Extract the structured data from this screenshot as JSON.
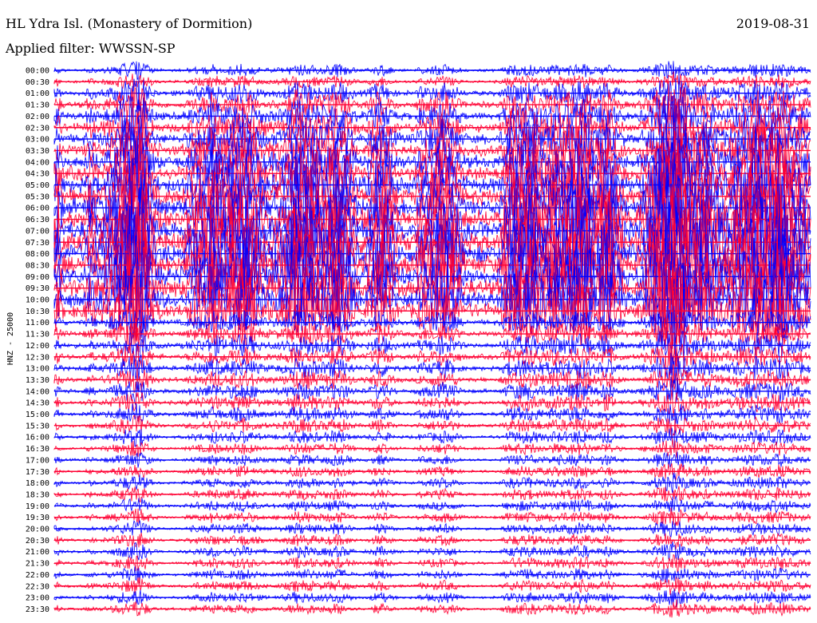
{
  "header": {
    "station": "HL Ydra Isl. (Monastery of Dormition)",
    "filter": "Applied filter: WWSSN-SP",
    "date": "2019-08-31"
  },
  "chart_data": {
    "type": "line",
    "title": "HL Ydra Isl. (Monastery of Dormition)",
    "subtitle": "Applied filter: WWSSN-SP",
    "date": "2019-08-31",
    "ylabel": "HNZ - 25000",
    "xlabel": "",
    "row_labels": [
      "00:00",
      "00:30",
      "01:00",
      "01:30",
      "02:00",
      "02:30",
      "03:00",
      "03:30",
      "04:00",
      "04:30",
      "05:00",
      "05:30",
      "06:00",
      "06:30",
      "07:00",
      "07:30",
      "08:00",
      "08:30",
      "09:00",
      "09:30",
      "10:00",
      "10:30",
      "11:00",
      "11:30",
      "12:00",
      "12:30",
      "13:00",
      "13:30",
      "14:00",
      "14:30",
      "15:00",
      "15:30",
      "16:00",
      "16:30",
      "17:00",
      "17:30",
      "18:00",
      "18:30",
      "19:00",
      "19:30",
      "20:00",
      "20:30",
      "21:00",
      "21:30",
      "22:00",
      "22:30",
      "23:00",
      "23:30"
    ],
    "series_colors": [
      "#0000ff",
      "#ff0033"
    ],
    "row_duration_minutes": 30,
    "grid": false,
    "legend": "none"
  }
}
